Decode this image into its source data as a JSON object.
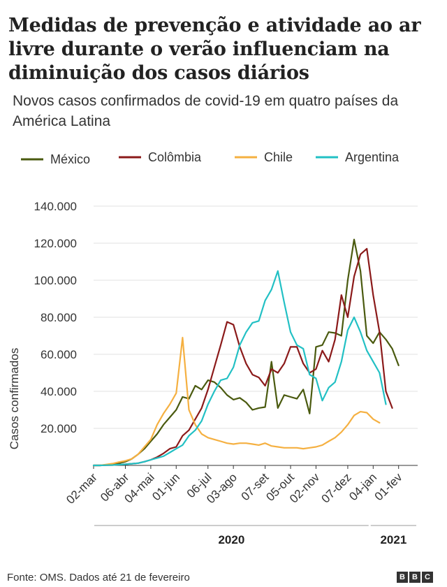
{
  "title": "Medidas de prevenção e atividade ao ar livre durante o verão influenciam na diminuição dos casos diários",
  "subtitle": "Novos casos confirmados de covid-19 em quatro países da América Latina",
  "source": "Fonte: OMS. Dados até 21 de fevereiro",
  "logo": [
    "B",
    "B",
    "C"
  ],
  "chart_data": {
    "type": "line",
    "ylabel": "Casos confirmados",
    "ylim": [
      0,
      140000
    ],
    "yticks": [
      {
        "value": 20000,
        "label": "20.000"
      },
      {
        "value": 40000,
        "label": "40.000"
      },
      {
        "value": 60000,
        "label": "60.000"
      },
      {
        "value": 80000,
        "label": "80.000"
      },
      {
        "value": 100000,
        "label": "100.000"
      },
      {
        "value": 120000,
        "label": "120.000"
      },
      {
        "value": 140000,
        "label": "140.000"
      }
    ],
    "xticks": [
      {
        "week": 0,
        "label": "02-mar"
      },
      {
        "week": 5,
        "label": "06-abr"
      },
      {
        "week": 9,
        "label": "04-mai"
      },
      {
        "week": 13,
        "label": "01-jun"
      },
      {
        "week": 18,
        "label": "06-jul"
      },
      {
        "week": 22,
        "label": "03-ago"
      },
      {
        "week": 27,
        "label": "07-set"
      },
      {
        "week": 31,
        "label": "05-out"
      },
      {
        "week": 35,
        "label": "02-nov"
      },
      {
        "week": 40,
        "label": "07-dez"
      },
      {
        "week": 44,
        "label": "04-jan"
      },
      {
        "week": 48,
        "label": "01-fev"
      }
    ],
    "x_range_weeks": [
      0,
      51
    ],
    "x_unit": "semanas desde 02-mar-2020",
    "year_groups": [
      {
        "label": "2020",
        "from": 0,
        "to": 43.5
      },
      {
        "label": "2021",
        "from": 43.5,
        "to": 51
      }
    ],
    "series": [
      {
        "name": "México",
        "color": "#4a5a0f",
        "values": [
          0,
          0,
          300,
          800,
          1200,
          2000,
          3500,
          6000,
          9000,
          13000,
          17000,
          22000,
          26000,
          30000,
          37000,
          36000,
          43000,
          41000,
          46000,
          45000,
          42000,
          38000,
          35500,
          36500,
          34000,
          30000,
          31000,
          31500,
          56000,
          31000,
          38000,
          37000,
          36000,
          41000,
          28000,
          64000,
          65000,
          72000,
          71500,
          70000,
          100000,
          122000,
          105000,
          70000,
          66000,
          72000,
          68000,
          63000,
          54000
        ]
      },
      {
        "name": "Colômbia",
        "color": "#8b1a1a",
        "values": [
          0,
          0,
          100,
          200,
          400,
          600,
          900,
          1200,
          2000,
          3000,
          4500,
          6500,
          9000,
          10000,
          16000,
          19000,
          25000,
          31000,
          41000,
          53000,
          65000,
          77500,
          76000,
          64000,
          55000,
          49000,
          47500,
          43000,
          52000,
          50000,
          55000,
          64000,
          64000,
          55000,
          50000,
          52000,
          62000,
          56000,
          68000,
          92000,
          80000,
          102000,
          114000,
          117000,
          92000,
          72000,
          40000,
          31000
        ]
      },
      {
        "name": "Chile",
        "color": "#f5b041",
        "values": [
          0,
          0,
          500,
          1000,
          1800,
          2500,
          3500,
          6000,
          10000,
          14000,
          22000,
          28000,
          33000,
          39000,
          69000,
          30000,
          22000,
          17000,
          15000,
          14000,
          13000,
          12000,
          11500,
          12000,
          12000,
          11500,
          11000,
          12000,
          10500,
          10000,
          9500,
          9500,
          9500,
          9000,
          9500,
          10000,
          11000,
          13000,
          15000,
          18000,
          22000,
          27000,
          29000,
          28500,
          25000,
          23000
        ]
      },
      {
        "name": "Argentina",
        "color": "#22c0c4",
        "values": [
          0,
          0,
          100,
          200,
          400,
          600,
          900,
          1200,
          2000,
          3000,
          4000,
          5000,
          7000,
          9000,
          11000,
          16000,
          19000,
          24000,
          33000,
          40000,
          46000,
          47000,
          53000,
          65000,
          72000,
          77000,
          78000,
          89000,
          95000,
          105000,
          88000,
          72000,
          65000,
          63000,
          49000,
          47000,
          35000,
          42000,
          45000,
          56000,
          73000,
          80000,
          72000,
          62000,
          56000,
          50000,
          33000
        ]
      }
    ]
  }
}
